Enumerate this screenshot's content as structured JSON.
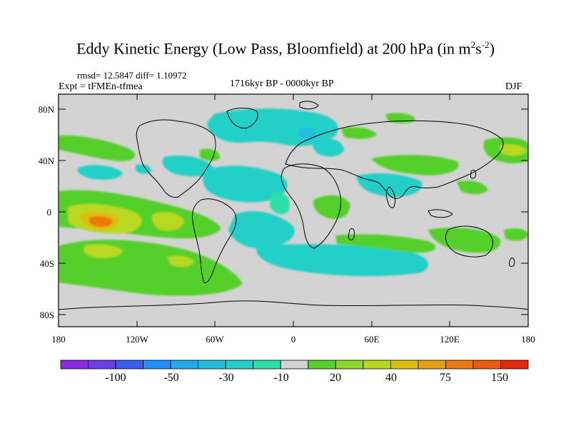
{
  "title": {
    "text": "Eddy Kinetic Energy (Low Pass, Bloomfield) at 200 hPa (in m",
    "sup1": "2",
    "mid": "s",
    "sup2": "-2",
    "close": ")"
  },
  "stats": "rmsd= 12.5847 diff= 1.10972",
  "experiment": "Expt = tFMEn-tfmea",
  "period": "1716kyr BP - 0000kyr BP",
  "season": "DJF",
  "axes": {
    "lat_labels": [
      "80N",
      "40N",
      "0",
      "40S",
      "80S"
    ],
    "lon_labels": [
      "180",
      "120W",
      "60W",
      "0",
      "60E",
      "120E",
      "180"
    ]
  },
  "colorbar": {
    "colors": [
      "#8a2be2",
      "#6a3de8",
      "#3a5ff0",
      "#1e90ff",
      "#22aaee",
      "#22c0e0",
      "#22d0c8",
      "#2adfa8",
      "#d3d3d3",
      "#55d02a",
      "#8ed828",
      "#b8d820",
      "#dcc010",
      "#e8a010",
      "#ee7a10",
      "#ec5a10",
      "#e22a0a"
    ],
    "labels": [
      "-100",
      "-50",
      "-30",
      "-10",
      "20",
      "40",
      "75",
      "150"
    ]
  }
}
